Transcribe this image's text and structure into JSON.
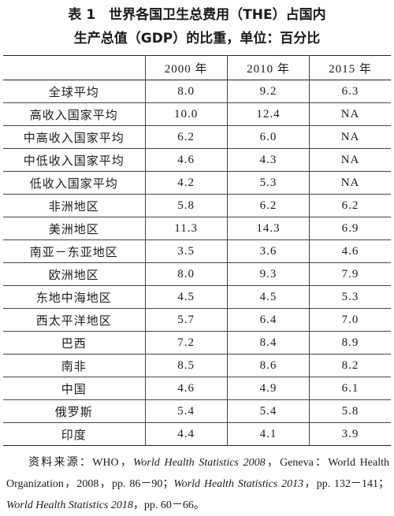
{
  "header": {
    "title_line1": "表 1　世界各国卫生总费用（THE）占国内",
    "title_line2": "生产总值（GDP）的比重，单位：百分比"
  },
  "table": {
    "columns": [
      "2000 年",
      "2010 年",
      "2015 年"
    ],
    "rows": [
      [
        "全球平均",
        "8.0",
        "9.2",
        "6.3"
      ],
      [
        "高收入国家平均",
        "10.0",
        "12.4",
        "NA"
      ],
      [
        "中高收入国家平均",
        "6.2",
        "6.0",
        "NA"
      ],
      [
        "中低收入国家平均",
        "4.6",
        "4.3",
        "NA"
      ],
      [
        "低收入国家平均",
        "4.2",
        "5.3",
        "NA"
      ],
      [
        "非洲地区",
        "5.8",
        "6.2",
        "6.2"
      ],
      [
        "美洲地区",
        "11.3",
        "14.3",
        "6.9"
      ],
      [
        "南亚－东亚地区",
        "3.5",
        "3.6",
        "4.6"
      ],
      [
        "欧洲地区",
        "8.0",
        "9.3",
        "7.9"
      ],
      [
        "东地中海地区",
        "4.5",
        "4.5",
        "5.3"
      ],
      [
        "西太平洋地区",
        "5.7",
        "6.4",
        "7.0"
      ],
      [
        "巴西",
        "7.2",
        "8.4",
        "8.9"
      ],
      [
        "南非",
        "8.5",
        "8.6",
        "8.2"
      ],
      [
        "中国",
        "4.6",
        "4.9",
        "6.1"
      ],
      [
        "俄罗斯",
        "5.4",
        "5.4",
        "5.8"
      ],
      [
        "印度",
        "4.4",
        "4.1",
        "3.9"
      ]
    ]
  },
  "note": [
    {
      "text": "资料来源：WHO，",
      "italic": false
    },
    {
      "text": "World Health Statistics 2008",
      "italic": true
    },
    {
      "text": "，Geneva：World Health Organization，2008，pp. 86－90；",
      "italic": false
    },
    {
      "text": "World Health Statistics 2013",
      "italic": true
    },
    {
      "text": "，pp. 132－141；",
      "italic": false
    },
    {
      "text": "World Health Statistics 2018",
      "italic": true
    },
    {
      "text": "，pp. 60－66。",
      "italic": false
    }
  ]
}
